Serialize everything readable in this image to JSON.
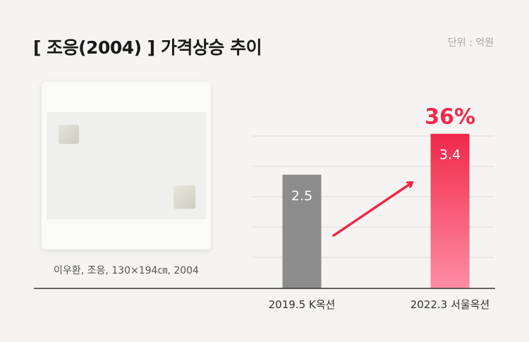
{
  "header": {
    "title": "[ 조응(2004) ] 가격상승 추이",
    "unit": "단위 : 억원"
  },
  "artwork": {
    "caption": "이우환, 조응, 130×194㎝, 2004"
  },
  "chart_data": {
    "type": "bar",
    "categories": [
      "2019.5 K옥션",
      "2022.3 서울옥션"
    ],
    "values": [
      2.5,
      3.4
    ],
    "value_labels": [
      "2.5",
      "3.4"
    ],
    "annotation": "36%",
    "ylim": [
      0,
      4
    ],
    "grid": true,
    "colors": [
      "#8c8c8c",
      "#f0294a"
    ],
    "accent_gradient_end": "#ff8da5"
  }
}
